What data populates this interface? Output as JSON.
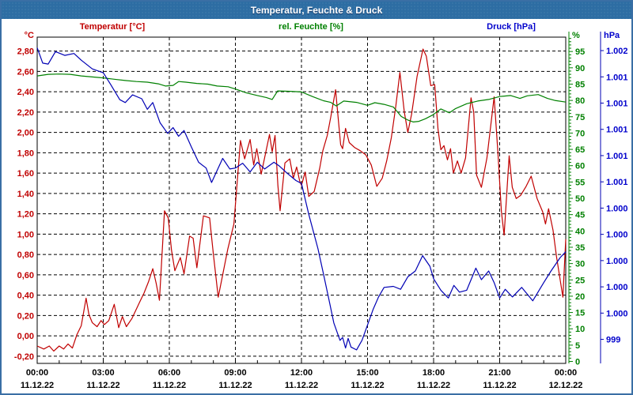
{
  "window": {
    "title": "Temperatur, Feuchte & Druck"
  },
  "legend": {
    "items": [
      {
        "label": "Temperatur [°C]",
        "color": "#c00000"
      },
      {
        "label": "rel. Feuchte [%]",
        "color": "#008000"
      },
      {
        "label": "Druck [hPa]",
        "color": "#0000cc"
      }
    ]
  },
  "chart_data": {
    "type": "line",
    "title": "Temperatur, Feuchte & Druck",
    "grid": "dashed-black",
    "legend_position": "top",
    "x_axis": {
      "hours_span": 24,
      "gridline_every_h": 3,
      "minor_tick_every_h": 1,
      "labels": [
        {
          "h": 0,
          "time": "00:00",
          "date": "11.12.22"
        },
        {
          "h": 3,
          "time": "03:00",
          "date": "11.12.22"
        },
        {
          "h": 6,
          "time": "06:00",
          "date": "11.12.22"
        },
        {
          "h": 9,
          "time": "09:00",
          "date": "11.12.22"
        },
        {
          "h": 12,
          "time": "12:00",
          "date": "11.12.22"
        },
        {
          "h": 15,
          "time": "15:00",
          "date": "11.12.22"
        },
        {
          "h": 18,
          "time": "18:00",
          "date": "11.12.22"
        },
        {
          "h": 21,
          "time": "21:00",
          "date": "11.12.22"
        },
        {
          "h": 24,
          "time": "00:00",
          "date": "12.12.22"
        }
      ]
    },
    "y_axes": {
      "temp": {
        "unit": "°C",
        "color": "#c00000",
        "side": "left",
        "range_top": 2.937,
        "range_bottom": -0.271,
        "tick_values": [
          2.8,
          2.6,
          2.4,
          2.2,
          2.0,
          1.8,
          1.6,
          1.4,
          1.2,
          1.0,
          0.8,
          0.6,
          0.4,
          0.2,
          0.0,
          -0.2
        ],
        "tick_labels": [
          "2,80",
          "2,60",
          "2,40",
          "2,20",
          "2,00",
          "1,80",
          "1,60",
          "1,40",
          "1,20",
          "1,00",
          "0,80",
          "0,60",
          "0,40",
          "0,20",
          "0,00",
          "-0,20"
        ]
      },
      "humidity": {
        "unit": "%",
        "color": "#008000",
        "side": "right",
        "range_top": 99.4,
        "range_bottom": -0.6,
        "tick_values": [
          95,
          90,
          85,
          80,
          75,
          70,
          65,
          60,
          55,
          50,
          45,
          40,
          35,
          30,
          25,
          20,
          15,
          10,
          5,
          0
        ],
        "minor_tick_step": 1
      },
      "pressure": {
        "unit": "hPa",
        "color": "#0000cc",
        "side": "far-right",
        "range_top": 1002.14,
        "range_bottom": 998.75,
        "tick_top_value": 1002,
        "tick_bottom_value": 999,
        "tick_labels": [
          "1.002",
          "1.001",
          "1.001",
          "1.001",
          "1.001",
          "1.001",
          "1.000",
          "1.000",
          "1.000",
          "1.000",
          "1.000",
          "999"
        ]
      }
    },
    "series": [
      {
        "name": "Temperatur",
        "axis": "temp",
        "color": "#c00000",
        "points": [
          [
            0,
            -0.1
          ],
          [
            0.3,
            -0.13
          ],
          [
            0.55,
            -0.1
          ],
          [
            0.75,
            -0.15
          ],
          [
            1.0,
            -0.1
          ],
          [
            1.2,
            -0.13
          ],
          [
            1.4,
            -0.08
          ],
          [
            1.6,
            -0.12
          ],
          [
            1.8,
            0.01
          ],
          [
            2.0,
            0.1
          ],
          [
            2.22,
            0.37
          ],
          [
            2.35,
            0.21
          ],
          [
            2.5,
            0.13
          ],
          [
            2.72,
            0.09
          ],
          [
            2.9,
            0.15
          ],
          [
            3.05,
            0.11
          ],
          [
            3.25,
            0.15
          ],
          [
            3.5,
            0.31
          ],
          [
            3.7,
            0.08
          ],
          [
            3.87,
            0.19
          ],
          [
            4.05,
            0.09
          ],
          [
            4.3,
            0.17
          ],
          [
            4.65,
            0.33
          ],
          [
            4.85,
            0.42
          ],
          [
            5.05,
            0.53
          ],
          [
            5.25,
            0.66
          ],
          [
            5.4,
            0.52
          ],
          [
            5.55,
            0.35
          ],
          [
            5.78,
            1.23
          ],
          [
            5.95,
            1.16
          ],
          [
            6.1,
            0.84
          ],
          [
            6.25,
            0.64
          ],
          [
            6.5,
            0.77
          ],
          [
            6.67,
            0.61
          ],
          [
            6.92,
            0.98
          ],
          [
            7.08,
            0.96
          ],
          [
            7.25,
            0.67
          ],
          [
            7.55,
            1.18
          ],
          [
            7.83,
            1.16
          ],
          [
            8.0,
            0.8
          ],
          [
            8.22,
            0.38
          ],
          [
            8.65,
            0.85
          ],
          [
            8.93,
            1.1
          ],
          [
            9.23,
            1.92
          ],
          [
            9.42,
            1.74
          ],
          [
            9.67,
            1.93
          ],
          [
            9.83,
            1.68
          ],
          [
            9.97,
            1.84
          ],
          [
            10.17,
            1.59
          ],
          [
            10.55,
            1.98
          ],
          [
            10.67,
            1.81
          ],
          [
            10.8,
            1.97
          ],
          [
            10.93,
            1.48
          ],
          [
            11.03,
            1.23
          ],
          [
            11.25,
            1.7
          ],
          [
            11.47,
            1.74
          ],
          [
            11.63,
            1.55
          ],
          [
            11.78,
            1.66
          ],
          [
            11.92,
            1.52
          ],
          [
            12.0,
            1.48
          ],
          [
            12.17,
            1.61
          ],
          [
            12.33,
            1.37
          ],
          [
            12.58,
            1.42
          ],
          [
            12.83,
            1.65
          ],
          [
            12.97,
            1.82
          ],
          [
            13.17,
            1.97
          ],
          [
            13.33,
            2.15
          ],
          [
            13.55,
            2.42
          ],
          [
            13.78,
            1.88
          ],
          [
            13.87,
            1.84
          ],
          [
            14.0,
            2.04
          ],
          [
            14.17,
            1.9
          ],
          [
            14.42,
            1.85
          ],
          [
            14.67,
            1.82
          ],
          [
            14.92,
            1.78
          ],
          [
            15.17,
            1.68
          ],
          [
            15.42,
            1.47
          ],
          [
            15.67,
            1.55
          ],
          [
            15.87,
            1.72
          ],
          [
            16.08,
            1.95
          ],
          [
            16.28,
            2.25
          ],
          [
            16.47,
            2.59
          ],
          [
            16.67,
            2.2
          ],
          [
            16.83,
            2.0
          ],
          [
            17.0,
            2.18
          ],
          [
            17.25,
            2.55
          ],
          [
            17.52,
            2.82
          ],
          [
            17.67,
            2.75
          ],
          [
            17.87,
            2.46
          ],
          [
            18.05,
            2.47
          ],
          [
            18.2,
            2.03
          ],
          [
            18.33,
            1.83
          ],
          [
            18.47,
            1.87
          ],
          [
            18.63,
            1.73
          ],
          [
            18.77,
            1.84
          ],
          [
            18.9,
            1.6
          ],
          [
            19.08,
            1.72
          ],
          [
            19.25,
            1.6
          ],
          [
            19.45,
            1.75
          ],
          [
            19.7,
            2.34
          ],
          [
            19.82,
            2.2
          ],
          [
            19.95,
            1.58
          ],
          [
            20.17,
            1.46
          ],
          [
            20.42,
            1.75
          ],
          [
            20.75,
            2.35
          ],
          [
            20.92,
            1.8
          ],
          [
            21.08,
            1.22
          ],
          [
            21.2,
            0.99
          ],
          [
            21.43,
            1.77
          ],
          [
            21.57,
            1.46
          ],
          [
            21.75,
            1.35
          ],
          [
            21.95,
            1.38
          ],
          [
            22.2,
            1.47
          ],
          [
            22.43,
            1.57
          ],
          [
            22.7,
            1.35
          ],
          [
            22.95,
            1.22
          ],
          [
            23.08,
            1.1
          ],
          [
            23.22,
            1.25
          ],
          [
            23.42,
            1.04
          ],
          [
            23.58,
            0.78
          ],
          [
            23.87,
            0.38
          ],
          [
            24.0,
            0.95
          ]
        ]
      },
      {
        "name": "rel. Feuchte",
        "axis": "humidity",
        "color": "#008000",
        "points": [
          [
            0,
            87.5
          ],
          [
            0.5,
            88.0
          ],
          [
            1.0,
            88.1
          ],
          [
            1.5,
            88.0
          ],
          [
            2.0,
            87.5
          ],
          [
            2.5,
            87.2
          ],
          [
            3.0,
            86.9
          ],
          [
            3.5,
            86.5
          ],
          [
            4.0,
            86.1
          ],
          [
            4.5,
            85.8
          ],
          [
            5.0,
            85.6
          ],
          [
            5.5,
            85.1
          ],
          [
            5.83,
            84.4
          ],
          [
            6.17,
            84.6
          ],
          [
            6.42,
            85.8
          ],
          [
            6.75,
            85.6
          ],
          [
            7.25,
            85.2
          ],
          [
            7.75,
            85.0
          ],
          [
            8.17,
            84.4
          ],
          [
            8.67,
            84.2
          ],
          [
            9.0,
            83.5
          ],
          [
            9.5,
            82.3
          ],
          [
            10.0,
            81.5
          ],
          [
            10.4,
            80.9
          ],
          [
            10.67,
            80.3
          ],
          [
            10.92,
            82.9
          ],
          [
            11.5,
            82.8
          ],
          [
            12.0,
            82.6
          ],
          [
            12.5,
            81.2
          ],
          [
            13.0,
            79.9
          ],
          [
            13.33,
            79.4
          ],
          [
            13.58,
            78.3
          ],
          [
            13.92,
            79.8
          ],
          [
            14.5,
            79.4
          ],
          [
            15.0,
            78.5
          ],
          [
            15.33,
            79.3
          ],
          [
            15.75,
            78.8
          ],
          [
            16.17,
            78.0
          ],
          [
            16.53,
            75.1
          ],
          [
            16.83,
            74.0
          ],
          [
            17.08,
            73.4
          ],
          [
            17.33,
            73.6
          ],
          [
            17.63,
            74.4
          ],
          [
            17.95,
            75.5
          ],
          [
            18.33,
            77.4
          ],
          [
            18.72,
            76.2
          ],
          [
            19.0,
            77.5
          ],
          [
            19.5,
            79.0
          ],
          [
            20.0,
            79.8
          ],
          [
            20.5,
            80.3
          ],
          [
            21.0,
            81.2
          ],
          [
            21.5,
            81.5
          ],
          [
            21.92,
            80.6
          ],
          [
            22.25,
            81.4
          ],
          [
            22.75,
            81.8
          ],
          [
            23.17,
            80.6
          ],
          [
            23.5,
            80.0
          ],
          [
            24.0,
            79.5
          ]
        ]
      },
      {
        "name": "Druck",
        "axis": "pressure",
        "color": "#0000b4",
        "points": [
          [
            0,
            1002.03
          ],
          [
            0.25,
            1001.87
          ],
          [
            0.5,
            1001.86
          ],
          [
            0.83,
            1001.99
          ],
          [
            1.25,
            1001.95
          ],
          [
            1.67,
            1001.97
          ],
          [
            2.0,
            1001.9
          ],
          [
            2.5,
            1001.81
          ],
          [
            3.0,
            1001.77
          ],
          [
            3.33,
            1001.65
          ],
          [
            3.75,
            1001.49
          ],
          [
            4.0,
            1001.46
          ],
          [
            4.33,
            1001.54
          ],
          [
            4.75,
            1001.5
          ],
          [
            5.0,
            1001.39
          ],
          [
            5.25,
            1001.46
          ],
          [
            5.58,
            1001.25
          ],
          [
            5.92,
            1001.14
          ],
          [
            6.17,
            1001.2
          ],
          [
            6.42,
            1001.11
          ],
          [
            6.67,
            1001.17
          ],
          [
            7.0,
            1001.0
          ],
          [
            7.33,
            1000.84
          ],
          [
            7.67,
            1000.78
          ],
          [
            7.92,
            1000.63
          ],
          [
            8.42,
            1000.88
          ],
          [
            8.75,
            1000.77
          ],
          [
            9.0,
            1000.78
          ],
          [
            9.33,
            1000.83
          ],
          [
            9.67,
            1000.74
          ],
          [
            10.0,
            1000.84
          ],
          [
            10.33,
            1000.77
          ],
          [
            10.75,
            1000.84
          ],
          [
            11.0,
            1000.8
          ],
          [
            11.33,
            1000.73
          ],
          [
            11.75,
            1000.65
          ],
          [
            12.0,
            1000.62
          ],
          [
            12.33,
            1000.3
          ],
          [
            12.75,
            999.94
          ],
          [
            13.0,
            999.68
          ],
          [
            13.25,
            999.41
          ],
          [
            13.47,
            999.17
          ],
          [
            13.75,
            998.99
          ],
          [
            13.87,
            999.02
          ],
          [
            14.0,
            998.91
          ],
          [
            14.12,
            999.01
          ],
          [
            14.25,
            998.92
          ],
          [
            14.5,
            998.89
          ],
          [
            14.75,
            998.99
          ],
          [
            15.0,
            999.15
          ],
          [
            15.25,
            999.31
          ],
          [
            15.5,
            999.44
          ],
          [
            15.75,
            999.54
          ],
          [
            16.17,
            999.55
          ],
          [
            16.5,
            999.52
          ],
          [
            16.83,
            999.65
          ],
          [
            17.17,
            999.71
          ],
          [
            17.5,
            999.87
          ],
          [
            17.83,
            999.76
          ],
          [
            18.0,
            999.63
          ],
          [
            18.33,
            999.51
          ],
          [
            18.67,
            999.43
          ],
          [
            18.92,
            999.56
          ],
          [
            19.17,
            999.49
          ],
          [
            19.5,
            999.51
          ],
          [
            19.92,
            999.74
          ],
          [
            20.17,
            999.62
          ],
          [
            20.5,
            999.71
          ],
          [
            20.75,
            999.59
          ],
          [
            21.0,
            999.43
          ],
          [
            21.25,
            999.52
          ],
          [
            21.58,
            999.44
          ],
          [
            22.0,
            999.54
          ],
          [
            22.5,
            999.4
          ],
          [
            23.0,
            999.59
          ],
          [
            23.33,
            999.71
          ],
          [
            23.75,
            999.85
          ],
          [
            24.0,
            999.91
          ]
        ]
      }
    ]
  }
}
